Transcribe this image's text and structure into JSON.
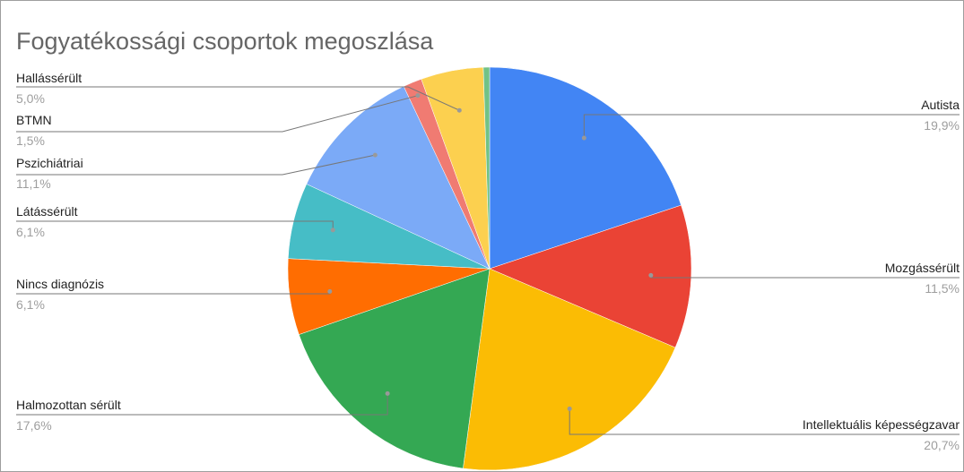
{
  "chart_data": {
    "type": "pie",
    "title": "Fogyatékossági csoportok megoszlása",
    "categories": [
      "Autista",
      "Mozgássérült",
      "Intellektuális képességzavar",
      "Halmozottan sérült",
      "Nincs diagnózis",
      "Látássérült",
      "Pszichiátriai",
      "BTMN",
      "Hallássérült",
      null
    ],
    "values": [
      19.9,
      11.5,
      20.7,
      17.6,
      6.1,
      6.1,
      11.1,
      1.5,
      5.0,
      0.5
    ],
    "value_labels": [
      "19,9%",
      "11,5%",
      "20,7%",
      "17,6%",
      "6,1%",
      "6,1%",
      "11,1%",
      "1,5%",
      "5,0%",
      null
    ],
    "colors": [
      "#4285f4",
      "#ea4335",
      "#fbbc04",
      "#34a853",
      "#ff6d01",
      "#46bdc6",
      "#7baaf7",
      "#f07b72",
      "#fcd04f",
      "#71c287"
    ]
  }
}
